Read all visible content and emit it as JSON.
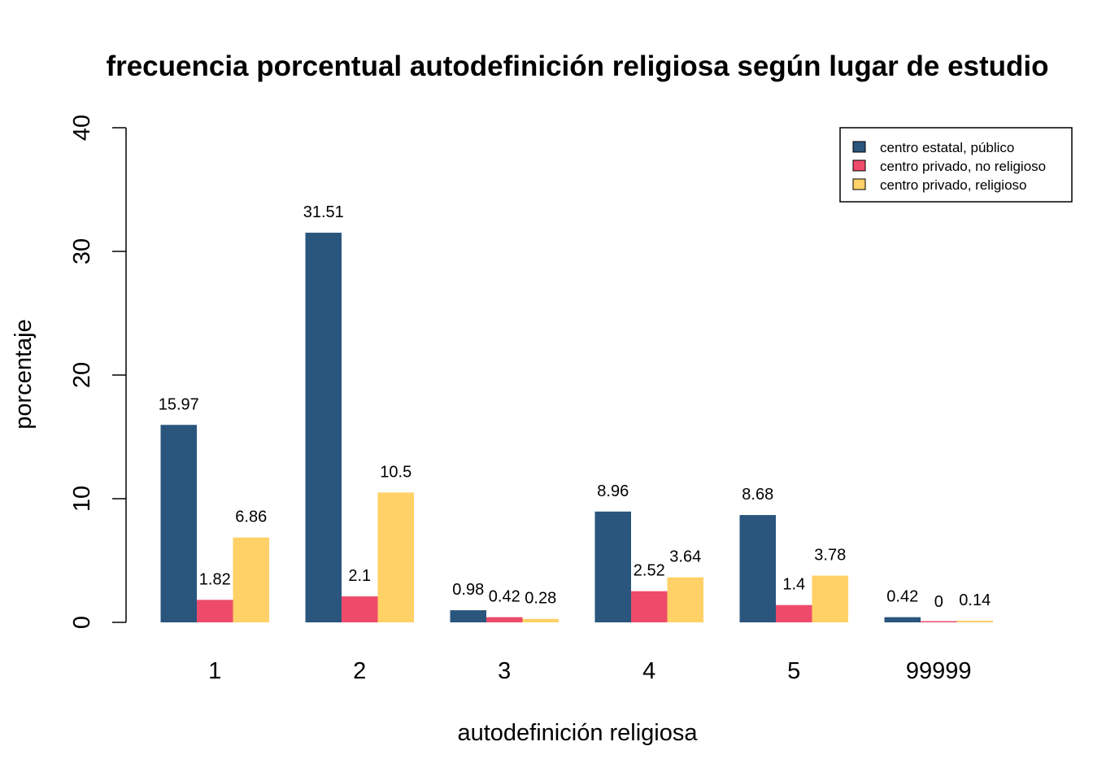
{
  "chart_data": {
    "type": "bar",
    "title": "frecuencia porcentual autodefinición religiosa según lugar de estudio",
    "xlabel": "autodefinición religiosa",
    "ylabel": "porcentaje",
    "ylim": [
      0,
      40
    ],
    "yticks": [
      "0",
      "10",
      "20",
      "30",
      "40"
    ],
    "grid": false,
    "legend_position": "top-right",
    "categories": [
      "1",
      "2",
      "3",
      "4",
      "5",
      "99999"
    ],
    "series": [
      {
        "name": "centro estatal, público",
        "color": "#2A557D",
        "values": [
          15.97,
          31.51,
          0.98,
          8.96,
          8.68,
          0.42
        ],
        "labels": [
          "15.97",
          "31.51",
          "0.98",
          "8.96",
          "8.68",
          "0.42"
        ]
      },
      {
        "name": "centro privado, no religioso",
        "color": "#EE4B6B",
        "values": [
          1.82,
          2.1,
          0.42,
          2.52,
          1.4,
          0
        ],
        "labels": [
          "1.82",
          "2.1",
          "0.42",
          "2.52",
          "1.4",
          "0"
        ]
      },
      {
        "name": "centro privado, religioso",
        "color": "#FFD166",
        "values": [
          6.86,
          10.5,
          0.28,
          3.64,
          3.78,
          0.14
        ],
        "labels": [
          "6.86",
          "10.5",
          "0.28",
          "3.64",
          "3.78",
          "0.14"
        ]
      }
    ]
  }
}
